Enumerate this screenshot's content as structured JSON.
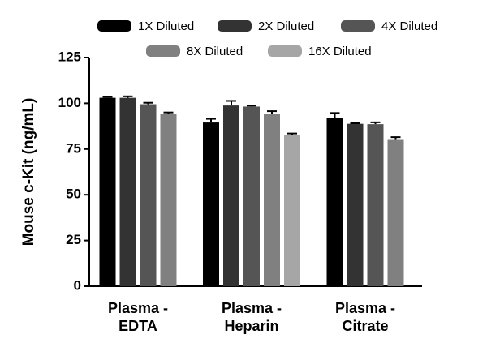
{
  "chart_data": {
    "type": "bar",
    "y_label": "Mouse c-Kit (ng/mL)",
    "categories": [
      "Plasma - EDTA",
      "Plasma - Heparin",
      "Plasma - Citrate"
    ],
    "series": [
      {
        "name": "1X Diluted",
        "color": "#000000",
        "values": [
          103,
          89.5,
          92.2
        ],
        "errors": [
          0.5,
          2,
          2.5
        ]
      },
      {
        "name": "2X Diluted",
        "color": "#333333",
        "values": [
          103,
          98.8,
          88.8
        ],
        "errors": [
          0.8,
          2.5,
          0.3
        ]
      },
      {
        "name": "4X Diluted",
        "color": "#555555",
        "values": [
          99.5,
          98.2,
          88.6
        ],
        "errors": [
          0.8,
          0.5,
          1
        ]
      },
      {
        "name": "8X Diluted",
        "color": "#808080",
        "values": [
          94,
          94.2,
          80
        ],
        "errors": [
          1,
          1.5,
          1.5
        ]
      },
      {
        "name": "16X Diluted",
        "color": "#a6a6a6",
        "values": [
          null,
          82.5,
          null
        ],
        "errors": [
          null,
          1,
          null
        ]
      }
    ],
    "ylim": [
      0,
      125
    ],
    "yticks": [
      0,
      25,
      50,
      75,
      100,
      125
    ]
  }
}
